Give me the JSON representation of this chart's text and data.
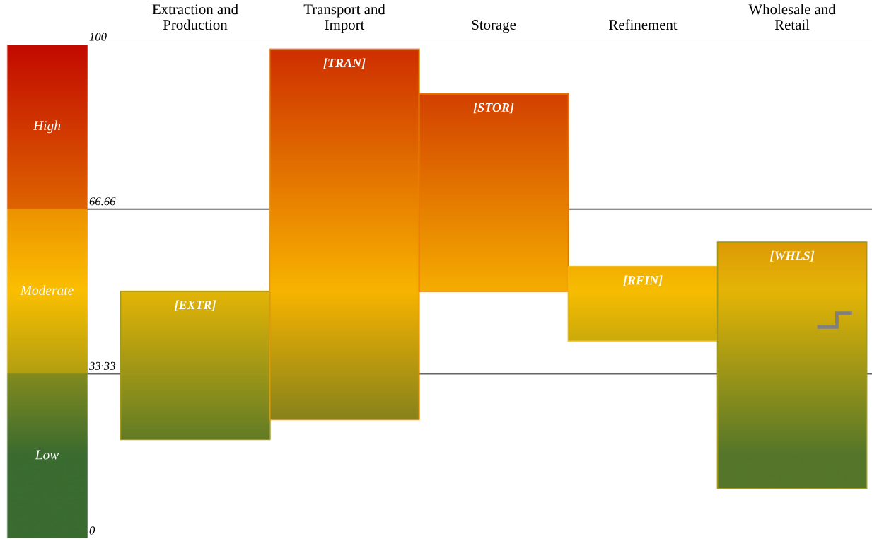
{
  "chart_data": {
    "type": "bar",
    "categories": [
      "Extraction and Production",
      "Transport and Import",
      "Storage",
      "Refinement",
      "Wholesale and Retail"
    ],
    "base": [
      20,
      24,
      50,
      40,
      10
    ],
    "values": [
      30,
      75,
      40,
      15,
      50
    ],
    "ylim": [
      0,
      100
    ],
    "yticks": [
      0,
      {
        "value": 33.33,
        "label": "33·33"
      },
      {
        "value": 66.66,
        "label": "66.66"
      },
      100
    ],
    "grid": "y",
    "bands": [
      {
        "axis": "y",
        "from": 0,
        "to": 33.33,
        "label": "Low",
        "color": "#3a6b30"
      },
      {
        "axis": "y",
        "from": 33.33,
        "to": 66.66,
        "label": "Moderate",
        "color": "#fbbf00"
      },
      {
        "axis": "y",
        "from": 66.66,
        "to": 100,
        "label": "High",
        "color": "#c20a00"
      }
    ],
    "annotations": [
      "[EXTR]",
      "[TRAN]",
      "[STOR]",
      "[RFIN]",
      "[WHLS]"
    ]
  }
}
